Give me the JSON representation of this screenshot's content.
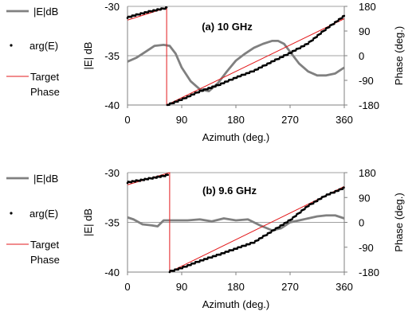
{
  "colors": {
    "magnitude": "#808080",
    "phase_points": "#000000",
    "target_phase": "#e31a1c",
    "grid": "#a0a0a0",
    "axis": "#808080"
  },
  "legend": [
    {
      "label": "|E|dB",
      "marker": "gray-line"
    },
    {
      "label": "arg(E)",
      "marker": "black-dot"
    },
    {
      "label": "Target\nPhase",
      "marker": "red-line"
    }
  ],
  "chart_data": [
    {
      "type": "line",
      "title": "(a) 10 GHz",
      "xlabel": "Azimuth (deg.)",
      "ylabel": "|E| dB",
      "y2label": "Phase (deg.)",
      "xlim": [
        0,
        360
      ],
      "ylim": [
        -40,
        -30
      ],
      "y2lim": [
        -180,
        180
      ],
      "xticks": [
        "0",
        "90",
        "180",
        "270",
        "360"
      ],
      "yticks": [
        "-30",
        "-35",
        "-40"
      ],
      "y2ticks": [
        "180",
        "90",
        "0",
        "-90",
        "-180"
      ],
      "grid": "horizontal",
      "series": [
        {
          "name": "|E|dB",
          "axis": "left",
          "x": [
            0,
            15,
            30,
            45,
            60,
            70,
            80,
            90,
            105,
            120,
            135,
            150,
            165,
            180,
            195,
            210,
            225,
            240,
            250,
            260,
            270,
            285,
            300,
            315,
            330,
            345,
            360
          ],
          "y": [
            -35.6,
            -35.2,
            -34.6,
            -34.0,
            -33.9,
            -34.0,
            -34.8,
            -36.2,
            -37.6,
            -38.4,
            -38.6,
            -37.8,
            -36.6,
            -35.5,
            -34.8,
            -34.2,
            -33.8,
            -33.5,
            -33.5,
            -33.8,
            -34.6,
            -35.8,
            -36.6,
            -37.0,
            -37.0,
            -36.8,
            -36.2
          ]
        },
        {
          "name": "arg(E)",
          "axis": "right",
          "x": [
            0,
            20,
            40,
            60,
            65,
            66,
            90,
            120,
            150,
            180,
            210,
            240,
            270,
            300,
            330,
            360
          ],
          "y": [
            140,
            152,
            163,
            172,
            175,
            -180,
            -160,
            -130,
            -108,
            -80,
            -55,
            -22,
            10,
            45,
            98,
            145
          ]
        },
        {
          "name": "Target Phase",
          "axis": "right",
          "x": [
            0,
            65,
            65,
            360
          ],
          "y": [
            130,
            175,
            -180,
            135
          ]
        }
      ]
    },
    {
      "type": "line",
      "title": "(b) 9.6 GHz",
      "xlabel": "Azimuth (deg.)",
      "ylabel": "|E| dB",
      "y2label": "Phase (deg.)",
      "xlim": [
        0,
        360
      ],
      "ylim": [
        -40,
        -30
      ],
      "y2lim": [
        -180,
        180
      ],
      "xticks": [
        "0",
        "90",
        "180",
        "270",
        "360"
      ],
      "yticks": [
        "-30",
        "-35",
        "-40"
      ],
      "y2ticks": [
        "180",
        "90",
        "0",
        "-90",
        "-180"
      ],
      "grid": "horizontal",
      "series": [
        {
          "name": "|E|dB",
          "axis": "left",
          "x": [
            0,
            10,
            25,
            40,
            50,
            60,
            80,
            100,
            120,
            140,
            160,
            180,
            200,
            220,
            240,
            255,
            270,
            285,
            300,
            315,
            330,
            345,
            360
          ],
          "y": [
            -34.5,
            -34.7,
            -35.2,
            -35.3,
            -35.4,
            -34.8,
            -34.8,
            -34.8,
            -34.7,
            -34.9,
            -34.6,
            -34.8,
            -34.7,
            -35.3,
            -35.8,
            -35.6,
            -35.0,
            -34.8,
            -34.6,
            -34.4,
            -34.3,
            -34.3,
            -34.6
          ]
        },
        {
          "name": "arg(E)",
          "axis": "right",
          "x": [
            0,
            20,
            40,
            60,
            68,
            70,
            90,
            120,
            150,
            180,
            210,
            240,
            270,
            300,
            330,
            360
          ],
          "y": [
            145,
            152,
            160,
            168,
            173,
            -178,
            -165,
            -140,
            -118,
            -95,
            -72,
            -32,
            8,
            60,
            98,
            125
          ]
        },
        {
          "name": "Target Phase",
          "axis": "right",
          "x": [
            0,
            70,
            70,
            360
          ],
          "y": [
            136,
            180,
            -180,
            130
          ]
        }
      ]
    }
  ]
}
